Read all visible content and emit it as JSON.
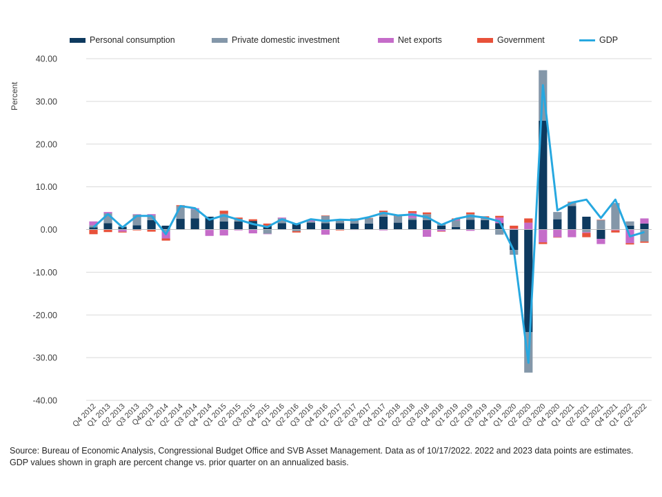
{
  "chart_data": {
    "type": "bar",
    "stacked": true,
    "title": "",
    "ylabel": "Percent",
    "xlabel": "",
    "ylim": [
      -40,
      40
    ],
    "yticks": [
      "40.00",
      "30.00",
      "20.00",
      "10.00",
      "0.00",
      "-10.00",
      "-20.00",
      "-30.00",
      "-40.00"
    ],
    "tick_values": [
      40,
      30,
      20,
      10,
      0,
      -10,
      -20,
      -30,
      -40
    ],
    "grid": true,
    "legend_position": "top",
    "categories": [
      "Q4 2012",
      "Q1 2013",
      "Q2 2013",
      "Q3 2013",
      "Q42013",
      "Q1 2014",
      "Q2 2014",
      "Q3 2014",
      "Q4 2014",
      "Q1 2015",
      "Q2 2015",
      "Q3 2015",
      "Q4 2015",
      "Q1 2016",
      "Q2 2016",
      "Q3 2016",
      "Q4 2016",
      "Q1 2017",
      "Q2 2017",
      "Q3 2017",
      "Q4 2017",
      "Q1 2018",
      "Q2 2018",
      "Q3 2018",
      "Q4 2018",
      "Q1 2019",
      "Q2 2019",
      "Q3 2019",
      "Q4 2019",
      "Q1 2020",
      "Q2 2020",
      "Q3 2020",
      "Q4 2020",
      "Q1 2021",
      "Q2 2021",
      "Q3 2021",
      "Q4 2021",
      "Q1 2022",
      "Q2 2022"
    ],
    "x_labels": [
      "Q4 2012",
      "Q1 2013",
      "Q2 2013",
      "Q3 2013",
      "Q42013",
      "Q1 2014",
      "Q2 2014",
      "Q3 2014",
      "Q4 2014",
      "Q1 2015",
      "Q2 2015",
      "Q3 2015",
      "Q4 2015",
      "Q1 2016",
      "Q2 2016",
      "Q3 2016",
      "Q4 2016",
      "Q1 2017",
      "Q2 2017",
      "Q3 2017",
      "Q4 2017",
      "Q1 2018",
      "Q2 2018",
      "Q3 2018",
      "Q4 2018",
      "Q1 2019",
      "Q2 2019",
      "Q3 2019",
      "Q4 2019",
      "Q1 2020",
      "Q2 2020",
      "Q3 2020",
      "Q4 2020",
      "Q1 2021",
      "Q2 2021",
      "Q3 2021",
      "Q4 2021",
      "Q1 2022",
      "Q2 2022"
    ],
    "series": [
      {
        "name": "Personal consumption",
        "kind": "bar",
        "color": "#0e3a5f",
        "values": [
          0.5,
          1.5,
          0.6,
          1.0,
          2.2,
          0.9,
          2.5,
          2.6,
          3.0,
          1.9,
          1.9,
          2.0,
          0.9,
          1.5,
          1.4,
          1.6,
          1.5,
          1.5,
          1.4,
          1.4,
          3.0,
          1.6,
          2.3,
          2.2,
          0.9,
          0.6,
          2.3,
          2.2,
          1.5,
          -4.8,
          -24.0,
          25.5,
          2.4,
          5.5,
          3.0,
          -2.2,
          0.0,
          0.9,
          1.4
        ]
      },
      {
        "name": "Private domestic investment",
        "kind": "bar",
        "color": "#8497a9",
        "values": [
          0.5,
          2.3,
          0.2,
          2.5,
          1.1,
          -0.5,
          3.0,
          2.1,
          -0.1,
          1.8,
          0.6,
          0.0,
          -1.0,
          1.1,
          -0.4,
          0.3,
          1.7,
          0.6,
          1.2,
          1.2,
          1.1,
          1.5,
          0.4,
          1.4,
          0.4,
          1.5,
          1.3,
          0.4,
          -1.2,
          -1.1,
          -9.5,
          11.8,
          1.7,
          0.9,
          -0.6,
          2.2,
          6.2,
          1.0,
          -2.8
        ]
      },
      {
        "name": "Net exports",
        "kind": "bar",
        "color": "#c56cc9",
        "values": [
          0.9,
          0.3,
          -0.5,
          0.1,
          0.3,
          -1.6,
          0.0,
          0.3,
          -1.4,
          -1.4,
          -0.2,
          -0.9,
          -0.1,
          0.2,
          0.1,
          0.3,
          -1.2,
          0.2,
          -0.1,
          0.0,
          -0.2,
          0.0,
          1.2,
          -1.7,
          -0.4,
          0.2,
          -0.3,
          0.2,
          1.3,
          0.2,
          1.6,
          -3.0,
          -1.8,
          -1.8,
          -0.2,
          -1.2,
          -0.2,
          -3.2,
          1.2
        ]
      },
      {
        "name": "Government",
        "kind": "bar",
        "color": "#e8513a",
        "values": [
          -1.1,
          -0.6,
          -0.2,
          -0.2,
          -0.5,
          -0.5,
          0.2,
          0.0,
          0.0,
          0.7,
          0.3,
          0.4,
          0.5,
          0.0,
          -0.3,
          0.1,
          0.1,
          -0.2,
          0.0,
          0.1,
          0.3,
          0.2,
          0.4,
          0.4,
          -0.1,
          0.3,
          0.4,
          0.3,
          0.4,
          0.7,
          1.0,
          -0.4,
          -0.1,
          0.1,
          -1.0,
          0.1,
          -0.5,
          -0.3,
          -0.3
        ]
      },
      {
        "name": "GDP",
        "kind": "line",
        "color": "#27a8e0",
        "values": [
          0.5,
          3.6,
          0.5,
          3.2,
          3.2,
          -1.1,
          5.5,
          5.0,
          2.3,
          3.3,
          2.3,
          1.3,
          0.6,
          2.4,
          1.2,
          2.4,
          2.0,
          2.3,
          2.2,
          2.9,
          3.9,
          3.3,
          3.5,
          2.9,
          1.1,
          2.5,
          3.2,
          2.8,
          1.9,
          -5.0,
          -31.2,
          33.8,
          4.5,
          6.3,
          7.0,
          2.7,
          7.0,
          -1.6,
          -0.6
        ]
      }
    ]
  },
  "legend": {
    "personal": "Personal consumption",
    "investment": "Private domestic investment",
    "net_exports": "Net exports",
    "government": "Government",
    "gdp": "GDP"
  },
  "axis": {
    "ylabel": "Percent"
  },
  "source": {
    "line1": "Source: Bureau of Economic Analysis, Congressional Budget Office and SVB Asset Management. Data as of 10/17/2022. 2022 and 2023 data points are estimates.",
    "line2": "GDP values shown in graph are percent change vs. prior quarter on an annualized basis."
  }
}
